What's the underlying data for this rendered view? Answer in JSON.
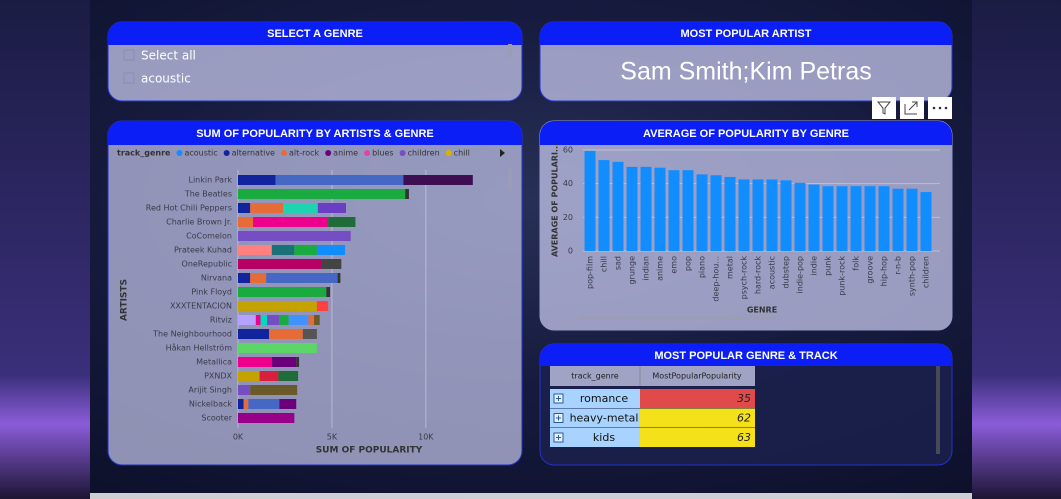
{
  "slicer": {
    "title": "SELECT A GENRE",
    "items": [
      "Select all",
      "acoustic"
    ]
  },
  "card": {
    "title": "MOST POPULAR ARTIST",
    "value": "Sam Smith;Kim Petras"
  },
  "chart_data": [
    {
      "type": "stacked-bar",
      "title": "SUM OF POPULARITY BY ARTISTS & GENRE",
      "legend_title": "track_genre",
      "legend": [
        {
          "name": "acoustic",
          "color": "#118dff"
        },
        {
          "name": "alternative",
          "color": "#12239e"
        },
        {
          "name": "alt-rock",
          "color": "#e66c37"
        },
        {
          "name": "anime",
          "color": "#6b007b"
        },
        {
          "name": "blues",
          "color": "#e044a7"
        },
        {
          "name": "children",
          "color": "#744ec2"
        },
        {
          "name": "chill",
          "color": "#d9b300"
        }
      ],
      "categories": [
        "Linkin Park",
        "The Beatles",
        "Red Hot Chili Peppers",
        "Charlie Brown Jr.",
        "CoComelon",
        "Prateek Kuhad",
        "OneRepublic",
        "Nirvana",
        "Pink Floyd",
        "XXXTENTACION",
        "Ritviz",
        "The Neighbourhood",
        "Håkan Hellström",
        "Metallica",
        "PXNDX",
        "Arijit Singh",
        "Nickelback",
        "Scooter"
      ],
      "segments": [
        [
          {
            "value": 2000,
            "color": "#12239e"
          },
          {
            "value": 6800,
            "color": "#4668c5"
          },
          {
            "value": 3700,
            "color": "#3d0f52"
          }
        ],
        [
          {
            "value": 8900,
            "color": "#1aab40"
          },
          {
            "value": 200,
            "color": "#333333"
          }
        ],
        [
          {
            "value": 650,
            "color": "#12239e"
          },
          {
            "value": 1750,
            "color": "#e66c37"
          },
          {
            "value": 1850,
            "color": "#1dd3b0"
          },
          {
            "value": 1500,
            "color": "#6b3fc4"
          }
        ],
        [
          {
            "value": 800,
            "color": "#e66c37"
          },
          {
            "value": 4000,
            "color": "#ec008c"
          },
          {
            "value": 1450,
            "color": "#1f6b3a"
          }
        ],
        [
          {
            "value": 6000,
            "color": "#744ec2"
          }
        ],
        [
          {
            "value": 1800,
            "color": "#ff8080"
          },
          {
            "value": 1200,
            "color": "#197278"
          },
          {
            "value": 1200,
            "color": "#1aab40"
          },
          {
            "value": 1500,
            "color": "#118dff"
          }
        ],
        [
          {
            "value": 4450,
            "color": "#b60064"
          },
          {
            "value": 1050,
            "color": "#444444"
          }
        ],
        [
          {
            "value": 650,
            "color": "#12239e"
          },
          {
            "value": 850,
            "color": "#e66c37"
          },
          {
            "value": 3800,
            "color": "#4668c5"
          },
          {
            "value": 150,
            "color": "#333333"
          }
        ],
        [
          {
            "value": 4700,
            "color": "#1aab40"
          },
          {
            "value": 200,
            "color": "#333333"
          }
        ],
        [
          {
            "value": 4200,
            "color": "#c4a200"
          },
          {
            "value": 600,
            "color": "#ff4141"
          }
        ],
        [
          {
            "value": 950,
            "color": "#b5a1ff"
          },
          {
            "value": 250,
            "color": "#ec008c"
          },
          {
            "value": 350,
            "color": "#00dbbc"
          },
          {
            "value": 650,
            "color": "#744ec2"
          },
          {
            "value": 500,
            "color": "#1aab40"
          },
          {
            "value": 1050,
            "color": "#4092ff"
          },
          {
            "value": 300,
            "color": "#e66c37"
          },
          {
            "value": 300,
            "color": "#6a5a29"
          }
        ],
        [
          {
            "value": 1650,
            "color": "#12239e"
          },
          {
            "value": 1800,
            "color": "#e66c37"
          },
          {
            "value": 750,
            "color": "#555555"
          }
        ],
        [
          {
            "value": 4200,
            "color": "#5bd667"
          }
        ],
        [
          {
            "value": 1800,
            "color": "#ec008c"
          },
          {
            "value": 1300,
            "color": "#6b007b"
          },
          {
            "value": 150,
            "color": "#333333"
          }
        ],
        [
          {
            "value": 1150,
            "color": "#c4a200"
          },
          {
            "value": 1000,
            "color": "#d6203d"
          },
          {
            "value": 1050,
            "color": "#1f6b3a"
          }
        ],
        [
          {
            "value": 650,
            "color": "#744ec2"
          },
          {
            "value": 2500,
            "color": "#6a5a29"
          }
        ],
        [
          {
            "value": 300,
            "color": "#12239e"
          },
          {
            "value": 250,
            "color": "#e66c37"
          },
          {
            "value": 1650,
            "color": "#4668c5"
          },
          {
            "value": 900,
            "color": "#6b007b"
          }
        ],
        [
          {
            "value": 3000,
            "color": "#99008a"
          }
        ]
      ],
      "xlim": [
        0,
        14000
      ],
      "xticks": [
        {
          "value": 0,
          "label": "0K"
        },
        {
          "value": 5000,
          "label": "5K"
        },
        {
          "value": 10000,
          "label": "10K"
        }
      ],
      "grid": true,
      "xlabel": "SUM OF POPULARITY",
      "ylabel": "ARTISTS"
    },
    {
      "type": "bar",
      "title": "AVERAGE OF POPULARITY BY GENRE",
      "categories": [
        "pop-film",
        "chill",
        "sad",
        "grunge",
        "indian",
        "anime",
        "emo",
        "pop",
        "piano",
        "deep-hou...",
        "metal",
        "psych-rock",
        "hard-rock",
        "acoustic",
        "dubstep",
        "indie-pop",
        "indie",
        "punk",
        "punk-rock",
        "folk",
        "groove",
        "hip-hop",
        "r-n-b",
        "synth-pop",
        "children"
      ],
      "values": [
        59.5,
        54,
        53,
        50,
        50,
        49.5,
        48,
        48,
        45.5,
        45,
        44,
        42.5,
        42.5,
        42.5,
        42,
        40.5,
        39.5,
        38.5,
        38.5,
        38.5,
        38.5,
        38.5,
        37,
        37,
        35
      ],
      "color": "#118dff",
      "ylim": [
        0,
        60
      ],
      "yticks": [
        0,
        20,
        40,
        60
      ],
      "grid": true,
      "xlabel": "GENRE",
      "ylabel": "AVERAGE OF POPULARI..."
    }
  ],
  "table": {
    "title": "MOST POPULAR GENRE & TRACK",
    "columns": [
      "track_genre",
      "MostPopularPopularity"
    ],
    "rows": [
      [
        "romance",
        35
      ],
      [
        "heavy-metal",
        62
      ],
      [
        "kids",
        63
      ]
    ],
    "value_colors": [
      "#e04a4a",
      "#f5e11a",
      "#f5e11a"
    ]
  }
}
